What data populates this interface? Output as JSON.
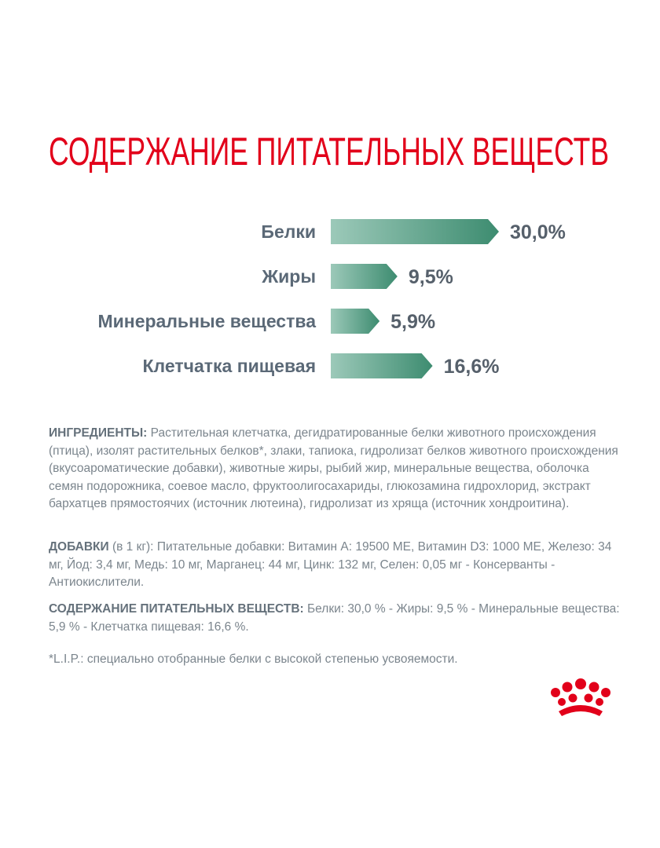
{
  "chart_data": {
    "type": "bar",
    "orientation": "horizontal",
    "title": "СОДЕРЖАНИЕ ПИТАТЕЛЬНЫХ ВЕЩЕСТВ",
    "categories": [
      "Белки",
      "Жиры",
      "Минеральные вещества",
      "Клетчатка пищевая"
    ],
    "values": [
      30.0,
      9.5,
      5.9,
      16.6
    ],
    "value_labels": [
      "30,0%",
      "9,5%",
      "5,9%",
      "16,6%"
    ],
    "colors": [
      "#9cc9b9",
      "#3d8c70"
    ]
  },
  "sections": [
    {
      "label": "ИНГРЕДИЕНТЫ:",
      "text": "Растительная клетчатка, дегидратированные белки животного происхождения (птица), изолят растительных белков*, злаки, тапиока, гидролизат белков животного происхождения (вкусоароматические добавки), животные жиры, рыбий жир, минеральные вещества, оболочка семян подорожника, соевое масло, фруктоолигосахариды, глюкозамина гидрохлорид, экстракт бархатцев прямостоячих (источник лютеина), гидролизат из хряща (источник хондроитина)."
    },
    {
      "label": "ДОБАВКИ",
      "qualifier": "(в 1 кг):",
      "text": "Питательные добавки: Витамин А: 19500 МЕ, Витамин D3: 1000 МЕ, Железо: 34 мг, Йод: 3,4 мг, Медь: 10 мг, Марганец: 44 мг, Цинк: 132 мг, Селен: 0,05 мг - Консерванты - Антиокислители."
    },
    {
      "label": "СОДЕРЖАНИЕ ПИТАТЕЛЬНЫХ ВЕЩЕСТВ:",
      "text": "Белки: 30,0 % - Жиры: 9,5 % - Минеральные вещества: 5,9 % - Клетчатка пищевая: 16,6 %."
    }
  ],
  "footnote": "*L.I.P.: специально отобранные белки с высокой степенью усвояемости."
}
